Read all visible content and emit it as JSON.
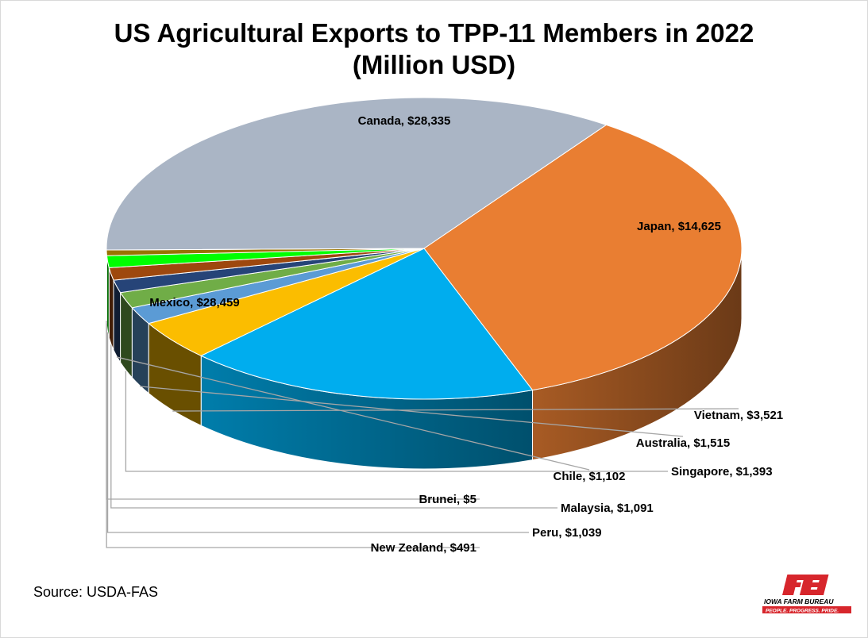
{
  "title_line1": "US Agricultural Exports to TPP-11 Members in 2022",
  "title_line2": "(Million USD)",
  "source": "Source: USDA-FAS",
  "logo": {
    "name": "IOWA FARM BUREAU",
    "tagline": "PEOPLE. PROGRESS. PRIDE.",
    "brand_color": "#d7262c"
  },
  "chart_data": {
    "type": "pie",
    "title": "US Agricultural Exports to TPP-11 Members in 2022",
    "subtitle": "(Million USD)",
    "slices": [
      {
        "label": "Canada",
        "value": 28335,
        "data_label": "Canada, $28,335",
        "color": "#e97e32"
      },
      {
        "label": "Japan",
        "value": 14625,
        "data_label": "Japan, $14,625",
        "color": "#00adee"
      },
      {
        "label": "Vietnam",
        "value": 3521,
        "data_label": "Vietnam, $3,521",
        "color": "#fbbd00"
      },
      {
        "label": "Australia",
        "value": 1515,
        "data_label": "Australia, $1,515",
        "color": "#5b9bd5"
      },
      {
        "label": "Singapore",
        "value": 1393,
        "data_label": "Singapore, $1,393",
        "color": "#70ad47"
      },
      {
        "label": "Chile",
        "value": 1102,
        "data_label": "Chile, $1,102",
        "color": "#264478"
      },
      {
        "label": "Malaysia",
        "value": 1091,
        "data_label": "Malaysia, $1,091",
        "color": "#9e480e"
      },
      {
        "label": "Peru",
        "value": 1039,
        "data_label": "Peru, $1,039",
        "color": "#00ff00"
      },
      {
        "label": "New Zealand",
        "value": 491,
        "data_label": "New Zealand, $491",
        "color": "#997300"
      },
      {
        "label": "Brunei",
        "value": 5,
        "data_label": "Brunei, $5",
        "color": "#ff0000"
      },
      {
        "label": "Mexico",
        "value": 28459,
        "data_label": "Mexico, $28,459",
        "color": "#aab5c5"
      }
    ]
  }
}
